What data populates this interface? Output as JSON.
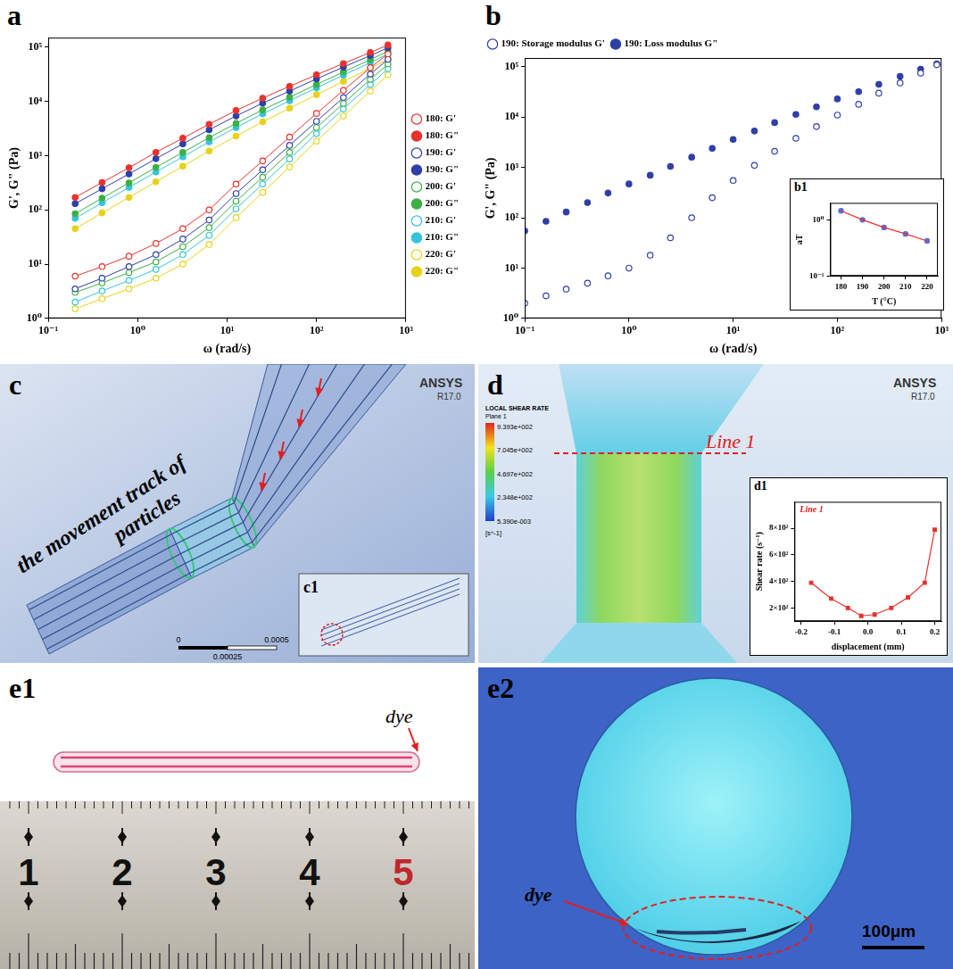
{
  "chart_data": [
    {
      "panel": "a",
      "type": "line",
      "x_label": "ω (rad/s)",
      "y_label": "G', G\" (Pa)",
      "log": true,
      "grid": false,
      "legend": "right",
      "x": [
        0.2,
        0.4,
        0.8,
        1.6,
        3.2,
        6.3,
        12.6,
        25,
        50,
        100,
        200,
        400,
        630
      ],
      "xlim": [
        0.1,
        1000
      ],
      "xticks": [
        {
          "value": 0.1,
          "label": "10⁻¹"
        },
        {
          "value": 1,
          "label": "10⁰"
        },
        {
          "value": 10,
          "label": "10¹"
        },
        {
          "value": 100,
          "label": "10²"
        },
        {
          "value": 1000,
          "label": "10³"
        }
      ],
      "ylim": [
        1,
        150000
      ],
      "yticks": [
        {
          "value": 1,
          "label": "10⁰"
        },
        {
          "value": 10,
          "label": "10¹"
        },
        {
          "value": 100,
          "label": "10²"
        },
        {
          "value": 1000,
          "label": "10³"
        },
        {
          "value": 10000,
          "label": "10⁴"
        },
        {
          "value": 100000,
          "label": "10⁵"
        }
      ],
      "series": [
        {
          "name": "180: G'",
          "color": "#e8322b",
          "marker": "open_circle",
          "line_style": "solid",
          "values": [
            6,
            9,
            14,
            24,
            45,
            100,
            300,
            800,
            2200,
            6000,
            16000,
            42000,
            75000
          ]
        },
        {
          "name": "180: G\"",
          "color": "#e8322b",
          "marker": "filled_circle",
          "line_style": "solid",
          "values": [
            170,
            320,
            600,
            1150,
            2100,
            3800,
            6800,
            11500,
            19000,
            31000,
            50000,
            80000,
            110000
          ]
        },
        {
          "name": "190: G'",
          "color": "#2f3fa8",
          "marker": "open_circle",
          "line_style": "solid",
          "values": [
            3.5,
            5.5,
            9,
            15,
            29,
            65,
            200,
            550,
            1550,
            4300,
            11800,
            32000,
            60000
          ]
        },
        {
          "name": "190: G\"",
          "color": "#2f3fa8",
          "marker": "filled_circle",
          "line_style": "solid",
          "values": [
            130,
            245,
            460,
            880,
            1650,
            3000,
            5400,
            9300,
            15500,
            26000,
            43000,
            70000,
            98000
          ]
        },
        {
          "name": "200: G'",
          "color": "#3cb043",
          "marker": "open_circle",
          "line_style": "solid",
          "values": [
            3,
            4.5,
            7,
            11,
            21,
            47,
            145,
            400,
            1150,
            3300,
            9200,
            25500,
            49000
          ]
        },
        {
          "name": "200: G\"",
          "color": "#3cb043",
          "marker": "filled_circle",
          "line_style": "solid",
          "values": [
            85,
            165,
            315,
            610,
            1150,
            2150,
            3950,
            7000,
            12000,
            20500,
            35000,
            59000,
            85000
          ]
        },
        {
          "name": "210: G'",
          "color": "#35c4d8",
          "marker": "open_circle",
          "line_style": "solid",
          "values": [
            2,
            3.2,
            5,
            8,
            15,
            34,
            105,
            300,
            870,
            2550,
            7300,
            20500,
            40000
          ]
        },
        {
          "name": "210: G\"",
          "color": "#35c4d8",
          "marker": "filled_circle",
          "line_style": "solid",
          "values": [
            70,
            135,
            260,
            500,
            950,
            1800,
            3300,
            5900,
            10300,
            17800,
            30500,
            52000,
            75000
          ]
        },
        {
          "name": "220: G'",
          "color": "#e6d21a",
          "marker": "open_circle",
          "line_style": "solid",
          "values": [
            1.5,
            2.3,
            3.5,
            5.5,
            10,
            23,
            72,
            210,
            620,
            1850,
            5400,
            15500,
            31000
          ]
        },
        {
          "name": "220: G\"",
          "color": "#e6d21a",
          "marker": "filled_circle",
          "line_style": "solid",
          "values": [
            45,
            88,
            170,
            330,
            640,
            1220,
            2300,
            4200,
            7500,
            13300,
            23500,
            41000,
            60000
          ]
        }
      ]
    },
    {
      "panel": "b",
      "type": "line",
      "x_label": "ω (rad/s)",
      "y_label": "G', G\" (Pa)",
      "log": true,
      "grid": false,
      "legend": "top",
      "x": [
        0.1,
        0.16,
        0.25,
        0.4,
        0.63,
        1,
        1.6,
        2.5,
        4,
        6.3,
        10,
        16,
        25,
        40,
        63,
        100,
        160,
        250,
        400,
        630,
        900
      ],
      "xlim": [
        0.1,
        1000
      ],
      "xticks": [
        {
          "value": 0.1,
          "label": "10⁻¹"
        },
        {
          "value": 1,
          "label": "10⁰"
        },
        {
          "value": 10,
          "label": "10¹"
        },
        {
          "value": 100,
          "label": "10²"
        },
        {
          "value": 1000,
          "label": "10³"
        }
      ],
      "ylim": [
        1,
        150000
      ],
      "yticks": [
        {
          "value": 1,
          "label": "10⁰"
        },
        {
          "value": 10,
          "label": "10¹"
        },
        {
          "value": 100,
          "label": "10²"
        },
        {
          "value": 1000,
          "label": "10³"
        },
        {
          "value": 10000,
          "label": "10⁴"
        },
        {
          "value": 100000,
          "label": "10⁵"
        }
      ],
      "series": [
        {
          "name": "190: Storage modulus G'",
          "color": "#2f3fa8",
          "marker": "open_circle",
          "line_style": "none",
          "values": [
            2,
            2.8,
            3.8,
            5,
            7,
            10,
            18,
            40,
            100,
            250,
            550,
            1100,
            2100,
            3800,
            6500,
            11000,
            18000,
            30000,
            48000,
            75000,
            110000
          ]
        },
        {
          "name": "190: Loss modulus G\"",
          "color": "#2f3fa8",
          "marker": "filled_circle",
          "line_style": "none",
          "values": [
            55,
            85,
            130,
            200,
            310,
            470,
            700,
            1050,
            1600,
            2400,
            3600,
            5300,
            7800,
            11300,
            16000,
            23000,
            32000,
            45000,
            65000,
            90000,
            115000
          ]
        }
      ]
    },
    {
      "panel": "b1",
      "type": "scatter",
      "x_label": "T (°C)",
      "y_label": "aT",
      "log": "y",
      "grid": false,
      "x": [
        180,
        190,
        200,
        210,
        220
      ],
      "xlim": [
        175,
        225
      ],
      "xticks": [
        180,
        190,
        200,
        210,
        220
      ],
      "ylim": [
        0.1,
        2
      ],
      "yticks": [
        {
          "value": 0.1,
          "label": "10⁻¹"
        },
        {
          "value": 1,
          "label": "10⁰"
        }
      ],
      "series": [
        {
          "type": "line",
          "color": "#e8322b",
          "marker": "none",
          "line_style": "solid",
          "values": [
            1.45,
            1.0,
            0.73,
            0.56,
            0.42
          ]
        },
        {
          "type": "scatter",
          "color": "#5b6fd6",
          "marker": "filled_circle",
          "line_style": "none",
          "values": [
            1.45,
            1.0,
            0.73,
            0.56,
            0.42
          ]
        }
      ]
    },
    {
      "panel": "d1",
      "type": "line",
      "annotation": "Line 1",
      "x_label": "displacement (mm)",
      "y_label": "Shear rate (s⁻¹)",
      "grid": false,
      "x": [
        -0.17,
        -0.11,
        -0.06,
        -0.02,
        0.02,
        0.07,
        0.12,
        0.17,
        0.2
      ],
      "xlim": [
        -0.22,
        0.22
      ],
      "xticks": [
        -0.2,
        -0.1,
        {
          "value": 0,
          "label": "0.0"
        },
        0.1,
        0.2
      ],
      "ylim": [
        100,
        1000
      ],
      "yticks": [
        {
          "value": 200,
          "label": "2×10²"
        },
        {
          "value": 400,
          "label": "4×10²"
        },
        {
          "value": 600,
          "label": "6×10²"
        },
        {
          "value": 800,
          "label": "8×10²"
        }
      ],
      "series": [
        {
          "color": "#e8322b",
          "marker": "square",
          "line_style": "solid",
          "values": [
            390,
            270,
            200,
            140,
            150,
            200,
            280,
            390,
            790
          ]
        }
      ]
    }
  ],
  "panels": {
    "c": {
      "panel": "c",
      "annotation": "the movement track of particles",
      "software": "ANSYS",
      "version": "R17.0",
      "inset": "c1",
      "scale_labels": [
        "0",
        "0.00025",
        "0.0005"
      ]
    },
    "d": {
      "panel": "d",
      "software": "ANSYS",
      "version": "R17.0",
      "legend_title": "LOCAL SHEAR RATE",
      "legend_subtitle": "Plane 1",
      "legend_labels": [
        "9.393e+002",
        "7.045e+002",
        "4.697e+002",
        "2.348e+002",
        "5.390e-003"
      ],
      "legend_unit": "[s^-1]",
      "line_label": "Line 1"
    },
    "e1": {
      "panel": "e1",
      "annotation": "dye",
      "ruler_labels": [
        1,
        2,
        3,
        4,
        5
      ]
    },
    "e2": {
      "panel": "e2",
      "annotation": "dye",
      "scale_label": "100μm"
    }
  }
}
